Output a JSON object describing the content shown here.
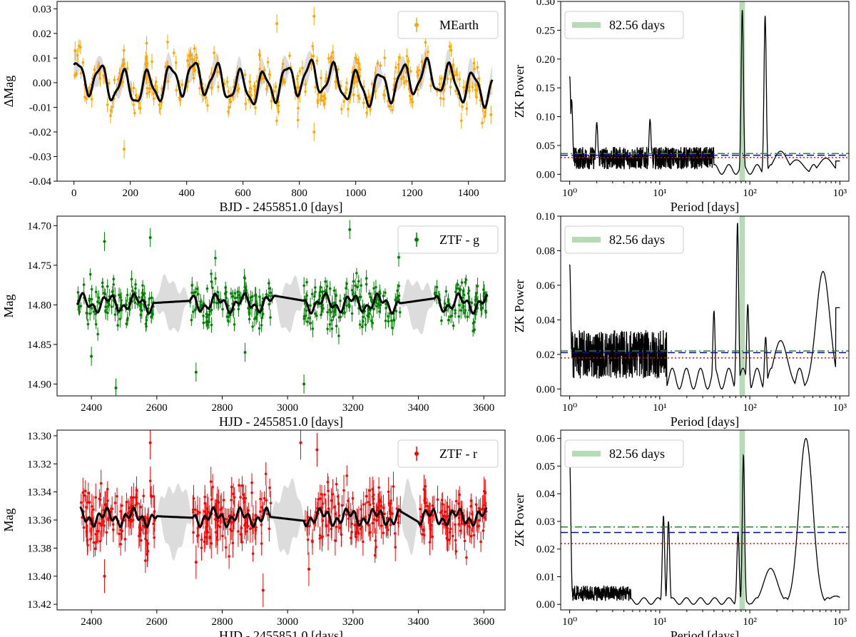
{
  "figure": {
    "description_label": "Light curves and ZK periodograms",
    "panels": [
      {
        "id": "mearth-lc",
        "type": "lightcurve",
        "xlabel": "BJD - 2455851.0 [days]",
        "ylabel": "ΔMag",
        "xlim": [
          -60,
          1530
        ],
        "ylim": [
          -0.04,
          0.033
        ],
        "inverted_y": false,
        "xticks": [
          0,
          200,
          400,
          600,
          800,
          1000,
          1200,
          1400
        ],
        "yticks": [
          -0.04,
          -0.03,
          -0.02,
          -0.01,
          0.0,
          0.01,
          0.02,
          0.03
        ],
        "yticklabels": [
          "-0.04",
          "-0.03",
          "-0.02",
          "-0.01",
          "0.00",
          "0.01",
          "0.02",
          "0.03"
        ],
        "legend": "MEarth",
        "color": "#ffa500",
        "t_start": 0,
        "t_end": 1485,
        "model_base": 0.0,
        "model_components": [
          {
            "amp": 0.0062,
            "period": 82.56,
            "phase": 0.6
          },
          {
            "amp": 0.0025,
            "period": 410,
            "phase": 1.3
          },
          {
            "amp": 0.0015,
            "period": 37,
            "phase": 2.1
          }
        ],
        "scatter": 0.004,
        "n_points": 420,
        "errbar": 0.0025,
        "outliers": [
          [
            178,
            -0.027
          ],
          [
            720,
            0.024
          ],
          [
            852,
            0.027
          ],
          [
            852,
            -0.02
          ],
          [
            1480,
            -0.013
          ],
          [
            4,
            0.013
          ]
        ],
        "gaps": [],
        "gray_bands": "ripple",
        "gray_amp": 0.006
      },
      {
        "id": "mearth-pg",
        "type": "periodogram",
        "xlabel": "Period [days]",
        "ylabel": "ZK Power",
        "xlim_log": [
          -0.1,
          3.1
        ],
        "ylim": [
          -0.012,
          0.3
        ],
        "xticks": [
          1,
          10,
          100,
          1000
        ],
        "xticklabels": [
          "10⁰",
          "10¹",
          "10²",
          "10³"
        ],
        "yticks": [
          0.0,
          0.05,
          0.1,
          0.15,
          0.2,
          0.25,
          0.3
        ],
        "yticklabels": [
          "0.00",
          "0.05",
          "0.10",
          "0.15",
          "0.20",
          "0.25",
          "0.30"
        ],
        "legend": "82.56 days",
        "highlight_period": 82.56,
        "fap_levels": [
          {
            "power": 0.029,
            "color": "#ff0000",
            "style": "dotted"
          },
          {
            "power": 0.033,
            "color": "#0000cc",
            "style": "dashed"
          },
          {
            "power": 0.036,
            "color": "#228b22",
            "style": "dashdot"
          }
        ],
        "noise_level": 0.028,
        "noise_decay_until": 10,
        "peaks": [
          {
            "period": 1.0,
            "power": 0.17
          },
          {
            "period": 1.05,
            "power": 0.13
          },
          {
            "period": 2.0,
            "power": 0.09
          },
          {
            "period": 7.8,
            "power": 0.095
          },
          {
            "period": 82.56,
            "power": 0.285
          },
          {
            "period": 148,
            "power": 0.275
          },
          {
            "period": 220,
            "power": 0.04
          },
          {
            "period": 330,
            "power": 0.025
          },
          {
            "period": 700,
            "power": 0.028
          }
        ],
        "tail_value": 0.023
      },
      {
        "id": "ztfg-lc",
        "type": "lightcurve",
        "xlabel": "HJD - 2455851.0 [days]",
        "ylabel": "Mag",
        "xlim": [
          2295,
          3665
        ],
        "ylim": [
          14.915,
          14.688
        ],
        "inverted_y": true,
        "xticks": [
          2400,
          2600,
          2800,
          3000,
          3200,
          3400,
          3600
        ],
        "yticks": [
          14.7,
          14.75,
          14.8,
          14.85,
          14.9
        ],
        "yticklabels": [
          "14.70",
          "14.75",
          "14.80",
          "14.85",
          "14.90"
        ],
        "legend": "ZTF - g",
        "color": "#008000",
        "t_start": 2355,
        "t_end": 3610,
        "model_base": 14.798,
        "model_components": [
          {
            "amp": 0.008,
            "period": 82.56,
            "phase": 0.2
          },
          {
            "amp": 0.005,
            "period": 31,
            "phase": 1.1
          }
        ],
        "scatter": 0.012,
        "n_points": 620,
        "errbar": 0.008,
        "outliers": [
          [
            2440,
            14.72
          ],
          [
            2475,
            14.905
          ],
          [
            2580,
            14.715
          ],
          [
            2720,
            14.885
          ],
          [
            2870,
            14.86
          ],
          [
            3050,
            14.9
          ],
          [
            3190,
            14.705
          ],
          [
            3340,
            14.74
          ],
          [
            2400,
            14.865
          ]
        ],
        "gaps": [
          [
            2590,
            2700
          ],
          [
            2960,
            3050
          ],
          [
            3345,
            3450
          ]
        ],
        "gray_bands": "gaps",
        "gray_amp": 0.03
      },
      {
        "id": "ztfg-pg",
        "type": "periodogram",
        "xlabel": "Period [days]",
        "ylabel": "ZK Power",
        "xlim_log": [
          -0.1,
          3.1
        ],
        "ylim": [
          -0.004,
          0.1
        ],
        "xticks": [
          1,
          10,
          100,
          1000
        ],
        "xticklabels": [
          "10⁰",
          "10¹",
          "10²",
          "10³"
        ],
        "yticks": [
          0.0,
          0.02,
          0.04,
          0.06,
          0.08,
          0.1
        ],
        "yticklabels": [
          "0.00",
          "0.02",
          "0.04",
          "0.06",
          "0.08",
          "0.10"
        ],
        "legend": "82.56 days",
        "highlight_period": 82.56,
        "fap_levels": [
          {
            "power": 0.018,
            "color": "#ff0000",
            "style": "dotted"
          },
          {
            "power": 0.021,
            "color": "#0000cc",
            "style": "dashed"
          },
          {
            "power": 0.022,
            "color": "#228b22",
            "style": "dashdot"
          }
        ],
        "noise_level": 0.02,
        "noise_decay_until": 3,
        "peaks": [
          {
            "period": 1.0,
            "power": 0.072
          },
          {
            "period": 40,
            "power": 0.045
          },
          {
            "period": 73,
            "power": 0.096
          },
          {
            "period": 95,
            "power": 0.049
          },
          {
            "period": 150,
            "power": 0.03
          },
          {
            "period": 220,
            "power": 0.028
          },
          {
            "period": 650,
            "power": 0.068
          }
        ],
        "tail_value": 0.047
      },
      {
        "id": "ztfr-lc",
        "type": "lightcurve",
        "xlabel": "HJD - 2455851.0 [days]",
        "ylabel": "Mag",
        "xlim": [
          2295,
          3665
        ],
        "ylim": [
          13.424,
          13.296
        ],
        "inverted_y": true,
        "xticks": [
          2400,
          2600,
          2800,
          3000,
          3200,
          3400,
          3600
        ],
        "yticks": [
          13.3,
          13.32,
          13.34,
          13.36,
          13.38,
          13.4,
          13.42
        ],
        "yticklabels": [
          "13.30",
          "13.32",
          "13.34",
          "13.36",
          "13.38",
          "13.40",
          "13.42"
        ],
        "legend": "ZTF - r",
        "color": "#ff0000",
        "t_start": 2365,
        "t_end": 3610,
        "model_base": 13.358,
        "model_components": [
          {
            "amp": 0.004,
            "period": 82.56,
            "phase": 0.9
          },
          {
            "amp": 0.003,
            "period": 27,
            "phase": 0.4
          }
        ],
        "scatter": 0.01,
        "n_points": 620,
        "errbar": 0.008,
        "outliers": [
          [
            2440,
            13.4
          ],
          [
            2580,
            13.305
          ],
          [
            2925,
            13.41
          ],
          [
            3040,
            13.305
          ],
          [
            3065,
            13.395
          ],
          [
            3090,
            13.31
          ],
          [
            2720,
            13.39
          ]
        ],
        "gaps": [
          [
            2600,
            2710
          ],
          [
            2950,
            3050
          ],
          [
            3345,
            3400
          ]
        ],
        "gray_bands": "gaps",
        "gray_amp": 0.024
      },
      {
        "id": "ztfr-pg",
        "type": "periodogram",
        "xlabel": "Period [days]",
        "ylabel": "ZK Power",
        "xlim_log": [
          -0.1,
          3.1
        ],
        "ylim": [
          -0.002,
          0.063
        ],
        "xticks": [
          1,
          10,
          100,
          1000
        ],
        "xticklabels": [
          "10⁰",
          "10¹",
          "10²",
          "10³"
        ],
        "yticks": [
          0.0,
          0.01,
          0.02,
          0.03,
          0.04,
          0.05,
          0.06
        ],
        "yticklabels": [
          "0.00",
          "0.01",
          "0.02",
          "0.03",
          "0.04",
          "0.05",
          "0.06"
        ],
        "legend": "82.56 days",
        "highlight_period": 82.56,
        "fap_levels": [
          {
            "power": 0.022,
            "color": "#ff0000",
            "style": "dotted"
          },
          {
            "power": 0.026,
            "color": "#0000cc",
            "style": "dashed"
          },
          {
            "power": 0.028,
            "color": "#228b22",
            "style": "dashdot"
          }
        ],
        "noise_level": 0.004,
        "noise_decay_until": 1.2,
        "peaks": [
          {
            "period": 1.0,
            "power": 0.052
          },
          {
            "period": 11,
            "power": 0.032
          },
          {
            "period": 12.5,
            "power": 0.03
          },
          {
            "period": 74,
            "power": 0.026
          },
          {
            "period": 85,
            "power": 0.054
          },
          {
            "period": 170,
            "power": 0.013
          },
          {
            "period": 420,
            "power": 0.06
          },
          {
            "period": 900,
            "power": 0.003
          }
        ],
        "tail_value": 0.002
      }
    ]
  }
}
